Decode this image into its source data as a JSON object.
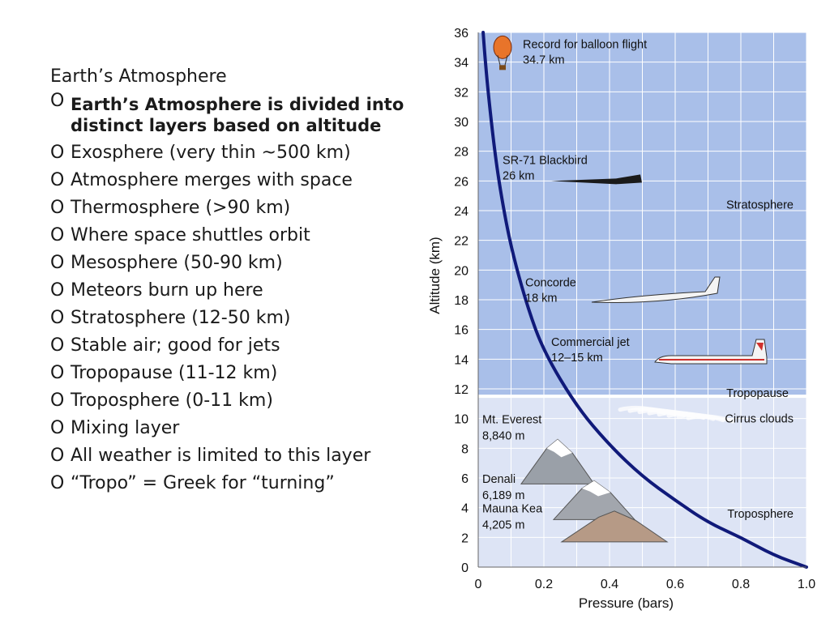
{
  "slide": {
    "title": "Earth’s Atmosphere",
    "marker": "O",
    "bullets": [
      {
        "text": "Earth’s Atmosphere is divided into distinct layers based on altitude",
        "bold": true
      },
      {
        "text": "Exosphere (very thin ~500 km)",
        "bold": false
      },
      {
        "text": "Atmosphere merges with space",
        "bold": false
      },
      {
        "text": "Thermosphere (>90 km)",
        "bold": false
      },
      {
        "text": "Where space shuttles orbit",
        "bold": false
      },
      {
        "text": "Mesosphere (50-90 km)",
        "bold": false
      },
      {
        "text": "Meteors burn up here",
        "bold": false
      },
      {
        "text": "Stratosphere (12-50 km)",
        "bold": false
      },
      {
        "text": "Stable air; good for jets",
        "bold": false
      },
      {
        "text": "Tropopause (11-12 km)",
        "bold": false
      },
      {
        "text": "Troposphere (0-11 km)",
        "bold": false
      },
      {
        "text": "Mixing layer",
        "bold": false
      },
      {
        "text": "All weather is limited to this layer",
        "bold": false
      },
      {
        "text": "“Tropo” = Greek for “turning”",
        "bold": false
      }
    ]
  },
  "figure": {
    "xlabel": "Pressure (bars)",
    "ylabel": "Altitude (km)",
    "xlim": [
      0,
      1.0
    ],
    "ylim": [
      0,
      36
    ],
    "x_ticks": [
      "0",
      "0.2",
      "0.4",
      "0.6",
      "0.8",
      "1.0"
    ],
    "y_ticks": [
      "0",
      "2",
      "4",
      "6",
      "8",
      "10",
      "12",
      "14",
      "16",
      "18",
      "20",
      "22",
      "24",
      "26",
      "28",
      "30",
      "32",
      "34",
      "36"
    ],
    "curve": [
      {
        "p": 1.0,
        "alt": 0
      },
      {
        "p": 0.9,
        "alt": 0.8
      },
      {
        "p": 0.8,
        "alt": 2.0
      },
      {
        "p": 0.7,
        "alt": 3.0
      },
      {
        "p": 0.6,
        "alt": 4.5
      },
      {
        "p": 0.5,
        "alt": 6.1
      },
      {
        "p": 0.4,
        "alt": 8.2
      },
      {
        "p": 0.3,
        "alt": 10.8
      },
      {
        "p": 0.2,
        "alt": 14.5
      },
      {
        "p": 0.15,
        "alt": 17.5
      },
      {
        "p": 0.1,
        "alt": 21.5
      },
      {
        "p": 0.07,
        "alt": 25.0
      },
      {
        "p": 0.05,
        "alt": 28.0
      },
      {
        "p": 0.03,
        "alt": 32.0
      },
      {
        "p": 0.02,
        "alt": 34.5
      },
      {
        "p": 0.015,
        "alt": 36.0
      }
    ],
    "tropopause_alt": 11.5,
    "colors": {
      "stratosphere": "#a9bfe9",
      "troposphere": "#dde4f5",
      "curve": "#101a7a",
      "grid": "#ffffff",
      "text": "#111111"
    },
    "layer_labels": {
      "stratosphere": {
        "text": "Stratosphere",
        "alt": 24.4
      },
      "tropopause": {
        "text": "Tropopause",
        "alt": 11.5
      },
      "cirrus": {
        "text": "Cirrus clouds",
        "alt": 10.0
      },
      "troposphere": {
        "text": "Troposphere",
        "alt": 3.6
      }
    },
    "annotations": [
      {
        "id": "balloon",
        "line1": "Record for balloon flight",
        "line2": "34.7 km",
        "icon": "hot-air-balloon-icon"
      },
      {
        "id": "sr71",
        "line1": "SR-71 Blackbird",
        "line2": "26 km",
        "icon": "sr71-blackbird-icon"
      },
      {
        "id": "concorde",
        "line1": "Concorde",
        "line2": "18 km",
        "icon": "concorde-icon"
      },
      {
        "id": "jet",
        "line1": "Commercial jet",
        "line2": "12–15 km",
        "icon": "commercial-jet-icon"
      },
      {
        "id": "everest",
        "line1": "Mt. Everest",
        "line2": "8,840 m",
        "icon": "mountain-icon"
      },
      {
        "id": "denali",
        "line1": "Denali",
        "line2": "6,189 m",
        "icon": "mountain-icon"
      },
      {
        "id": "maunakea",
        "line1": "Mauna Kea",
        "line2": "4,205 m",
        "icon": "mountain-icon"
      }
    ]
  }
}
